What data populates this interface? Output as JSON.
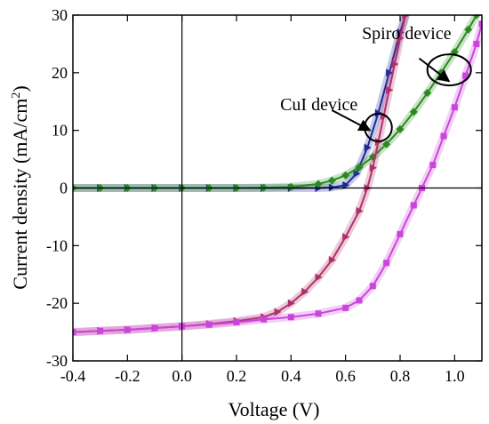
{
  "chart_data": {
    "type": "line",
    "title": "",
    "xlabel": "Voltage (V)",
    "ylabel_main": "Current density (mA/cm",
    "ylabel_sup": "2",
    "ylabel_close": ")",
    "xlim": [
      -0.4,
      1.1
    ],
    "ylim": [
      -30,
      30
    ],
    "xticks": [
      -0.4,
      -0.2,
      0.0,
      0.2,
      0.4,
      0.6,
      0.8,
      1.0
    ],
    "xtick_labels": [
      "-0.4",
      "-0.2",
      "0.0",
      "0.2",
      "0.4",
      "0.6",
      "0.8",
      "1.0"
    ],
    "yticks": [
      -30,
      -20,
      -10,
      0,
      10,
      20,
      30
    ],
    "ytick_labels": [
      "-30",
      "-20",
      "-10",
      "0",
      "10",
      "20",
      "30"
    ],
    "grid": false,
    "series": [
      {
        "color": "#1a2a9c",
        "marker": "triangle-right",
        "x": [
          -0.4,
          -0.3,
          -0.2,
          -0.1,
          0.0,
          0.1,
          0.2,
          0.3,
          0.4,
          0.5,
          0.55,
          0.6,
          0.64,
          0.68,
          0.72,
          0.76,
          0.8,
          0.82
        ],
        "y": [
          0.0,
          0.0,
          0.0,
          0.0,
          0.0,
          0.0,
          0.0,
          0.0,
          0.0,
          0.0,
          0.1,
          0.5,
          2.5,
          7.0,
          13.0,
          20.0,
          27.0,
          30.0
        ]
      },
      {
        "color": "#2a8a1e",
        "marker": "diamond",
        "x": [
          -0.4,
          -0.3,
          -0.2,
          -0.1,
          0.0,
          0.1,
          0.2,
          0.3,
          0.4,
          0.5,
          0.55,
          0.6,
          0.65,
          0.7,
          0.75,
          0.8,
          0.85,
          0.9,
          0.95,
          1.0,
          1.05,
          1.08
        ],
        "y": [
          0.0,
          0.0,
          0.0,
          0.0,
          0.0,
          0.0,
          0.0,
          0.05,
          0.2,
          0.7,
          1.3,
          2.2,
          3.6,
          5.4,
          7.6,
          10.2,
          13.2,
          16.5,
          20.0,
          23.6,
          27.5,
          30.0
        ]
      },
      {
        "color": "#b0306a",
        "marker": "triangle-right",
        "x": [
          -0.4,
          -0.3,
          -0.2,
          -0.1,
          0.0,
          0.1,
          0.2,
          0.3,
          0.35,
          0.4,
          0.45,
          0.5,
          0.55,
          0.6,
          0.65,
          0.68,
          0.7,
          0.72,
          0.74,
          0.76,
          0.78,
          0.8,
          0.82
        ],
        "y": [
          -25.0,
          -24.8,
          -24.6,
          -24.3,
          -24.0,
          -23.6,
          -23.1,
          -22.4,
          -21.5,
          -20.0,
          -18.0,
          -15.5,
          -12.5,
          -8.5,
          -4.0,
          0.0,
          3.5,
          8.0,
          12.5,
          17.0,
          21.5,
          26.0,
          30.0
        ]
      },
      {
        "color": "#cc44dd",
        "marker": "square",
        "x": [
          -0.4,
          -0.3,
          -0.2,
          -0.1,
          0.0,
          0.1,
          0.2,
          0.3,
          0.4,
          0.5,
          0.6,
          0.65,
          0.7,
          0.75,
          0.8,
          0.85,
          0.88,
          0.92,
          0.96,
          1.0,
          1.04,
          1.08,
          1.1
        ],
        "y": [
          -25.0,
          -24.8,
          -24.6,
          -24.3,
          -24.0,
          -23.7,
          -23.3,
          -22.8,
          -22.4,
          -21.8,
          -20.8,
          -19.5,
          -17.0,
          -13.0,
          -8.0,
          -3.0,
          0.0,
          4.0,
          9.0,
          14.0,
          19.5,
          25.0,
          28.5
        ]
      }
    ],
    "annotations": [
      {
        "text": "Spiro device",
        "arrow_from": [
          0.87,
          22.5
        ],
        "arrow_to": [
          0.98,
          18.5
        ],
        "ellipse_center": [
          0.98,
          20.5
        ],
        "ellipse_rx": 0.08,
        "ellipse_ry": 2.7,
        "text_x": 0.66,
        "text_y": 25.8
      },
      {
        "text": "CuI device",
        "arrow_from": [
          0.55,
          13.5
        ],
        "arrow_to": [
          0.69,
          10.0
        ],
        "ellipse_center": [
          0.72,
          10.5
        ],
        "ellipse_rx": 0.05,
        "ellipse_ry": 2.4,
        "text_x": 0.36,
        "text_y": 13.5
      }
    ]
  }
}
